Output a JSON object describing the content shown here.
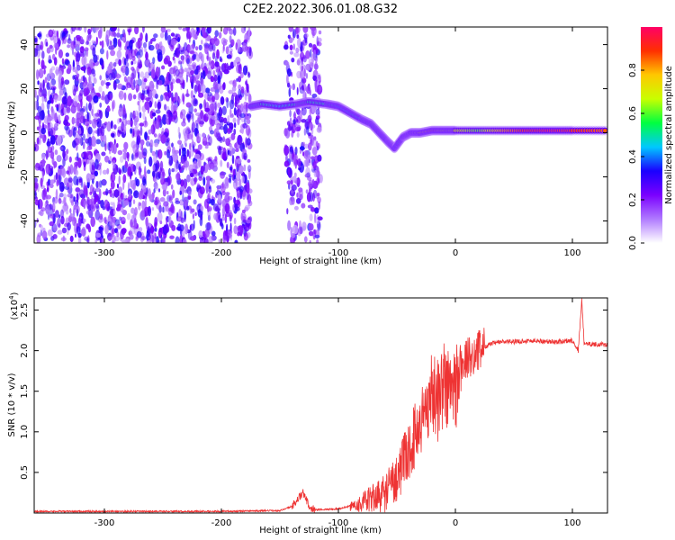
{
  "title": "C2E2.2022.306.01.08.G32",
  "chart_data": [
    {
      "type": "heatmap",
      "xlabel": "Height of straight line (km)",
      "ylabel": "Frequency (Hz)",
      "xlim": [
        -360,
        130
      ],
      "ylim": [
        -50,
        48
      ],
      "x_ticks": [
        -300,
        -200,
        -100,
        0,
        100
      ],
      "y_ticks": [
        -40,
        -20,
        0,
        20,
        40
      ],
      "colorbar": {
        "label": "Normalized spectral amplitude",
        "range": [
          0,
          1
        ],
        "ticks": [
          0.0,
          0.2,
          0.4,
          0.6,
          0.8
        ],
        "colormap": [
          "#ffffff",
          "#b07aff",
          "#7a00ff",
          "#1a00ff",
          "#00c8ff",
          "#00ff40",
          "#c8ff00",
          "#ffc800",
          "#ff3000",
          "#ff0066"
        ]
      },
      "noise_region_x": [
        -360,
        -175
      ],
      "noise_band_x": [
        -145,
        -115
      ],
      "ridge": {
        "x": [
          -175,
          -165,
          -150,
          -135,
          -125,
          -110,
          -100,
          -90,
          -80,
          -72,
          -65,
          -58,
          -52,
          -45,
          -38,
          -30,
          -20,
          -10,
          0,
          20,
          40,
          60,
          80,
          100,
          130
        ],
        "freq": [
          12,
          13,
          12,
          13,
          14,
          13,
          12,
          9,
          6,
          4,
          0,
          -4,
          -7,
          -2,
          0,
          0,
          1,
          1,
          1,
          1,
          1,
          1,
          1,
          1,
          1
        ],
        "amplitude": [
          0.45,
          0.5,
          0.45,
          0.5,
          0.5,
          0.5,
          0.45,
          0.45,
          0.5,
          0.5,
          0.5,
          0.5,
          0.45,
          0.55,
          0.6,
          0.7,
          0.85,
          0.7,
          0.7,
          0.6,
          0.8,
          0.9,
          0.95,
          0.9,
          0.85
        ]
      }
    },
    {
      "type": "line",
      "xlabel": "Height of straight line (km)",
      "ylabel": "SNR (10 * v/v)",
      "scale_label": "(x10",
      "scale_exp": "4",
      "scale_close": ")",
      "xlim": [
        -360,
        130
      ],
      "ylim": [
        0,
        2.65
      ],
      "x_ticks": [
        -300,
        -200,
        -100,
        0,
        100
      ],
      "y_ticks": [
        0.5,
        1.0,
        1.5,
        2.0,
        2.5
      ],
      "color": "#ee3333",
      "series": [
        {
          "x": [
            -360,
            -300,
            -250,
            -200,
            -150,
            -140,
            -130,
            -125,
            -120,
            -100,
            -80,
            -60,
            -50,
            -45,
            -40,
            -35,
            -30,
            -25,
            -20,
            -15,
            -10,
            -5,
            0,
            5,
            10,
            15,
            20,
            25,
            30,
            35,
            40,
            50,
            60,
            70,
            80,
            90,
            100,
            105,
            108,
            110,
            115,
            120,
            130
          ],
          "values": [
            0.02,
            0.02,
            0.02,
            0.02,
            0.03,
            0.08,
            0.25,
            0.08,
            0.04,
            0.05,
            0.12,
            0.25,
            0.45,
            0.6,
            0.75,
            0.95,
            1.1,
            1.3,
            1.5,
            1.4,
            1.6,
            1.5,
            1.55,
            1.8,
            1.9,
            1.95,
            2.0,
            2.05,
            2.08,
            2.1,
            2.11,
            2.11,
            2.12,
            2.12,
            2.11,
            2.11,
            2.13,
            2.0,
            2.62,
            2.1,
            2.08,
            2.08,
            2.07
          ]
        }
      ]
    }
  ]
}
